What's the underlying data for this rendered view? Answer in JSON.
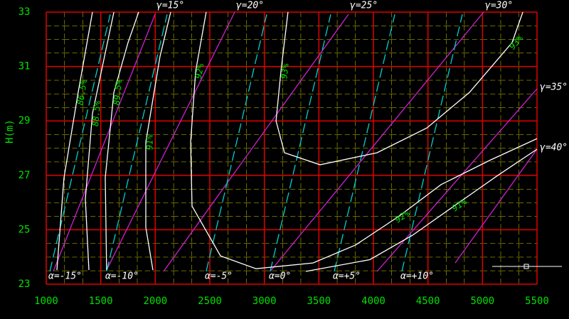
{
  "chart_data": {
    "type": "line",
    "y_label": "H(m)",
    "xlim": [
      1000,
      5500
    ],
    "ylim": [
      23,
      33
    ],
    "xticks": [
      1000,
      1500,
      2000,
      2500,
      3000,
      3500,
      4000,
      4500,
      5000,
      5500
    ],
    "yticks": [
      23,
      25,
      27,
      29,
      31,
      33
    ],
    "grid": true,
    "grid_color": "#e00000",
    "background": "#000000",
    "series": [
      {
        "name": "γ=15°",
        "group": "gamma",
        "color": "#d020d0",
        "dashed": false,
        "x": [
          1065,
          1998
        ],
        "values": [
          23.47,
          32.92
        ]
      },
      {
        "name": "γ=20°",
        "group": "gamma",
        "color": "#d020d0",
        "dashed": false,
        "x": [
          1554,
          2728
        ],
        "values": [
          23.52,
          33
        ]
      },
      {
        "name": "γ=25°",
        "group": "gamma",
        "color": "#d020d0",
        "dashed": false,
        "x": [
          2076,
          3772
        ],
        "values": [
          23.47,
          32.92
        ]
      },
      {
        "name": "γ=30°",
        "group": "gamma",
        "color": "#d020d0",
        "dashed": false,
        "x": [
          3054,
          5011
        ],
        "values": [
          23.47,
          33
        ]
      },
      {
        "name": "γ=35°",
        "group": "gamma",
        "color": "#d020d0",
        "dashed": false,
        "x": [
          4033,
          5500
        ],
        "values": [
          23.47,
          30.18
        ]
      },
      {
        "name": "γ=40°",
        "group": "gamma",
        "color": "#d020d0",
        "dashed": false,
        "x": [
          4750,
          5500
        ],
        "values": [
          23.78,
          27.96
        ]
      },
      {
        "name": "α=-15°",
        "group": "alpha",
        "color": "#00d0d0",
        "dashed": true,
        "x": [
          1033,
          1587
        ],
        "values": [
          23.47,
          32.92
        ]
      },
      {
        "name": "α=-10°",
        "group": "alpha",
        "color": "#00d0d0",
        "dashed": true,
        "x": [
          1554,
          2109
        ],
        "values": [
          23.47,
          32.92
        ]
      },
      {
        "name": "α=-5°",
        "group": "alpha",
        "color": "#00d0d0",
        "dashed": true,
        "x": [
          2467,
          3022
        ],
        "values": [
          23.47,
          32.92
        ]
      },
      {
        "name": "α=0°",
        "group": "alpha",
        "color": "#00d0d0",
        "dashed": true,
        "x": [
          3054,
          3609
        ],
        "values": [
          23.47,
          32.92
        ]
      },
      {
        "name": "α=+5°",
        "group": "alpha",
        "color": "#00d0d0",
        "dashed": true,
        "x": [
          3641,
          4196
        ],
        "values": [
          23.47,
          32.92
        ]
      },
      {
        "name": "α=+10°",
        "group": "alpha",
        "color": "#00d0d0",
        "dashed": true,
        "x": [
          4261,
          4816
        ],
        "values": [
          23.47,
          32.92
        ]
      },
      {
        "name": "86.5%",
        "group": "eff",
        "color": "#ffffff",
        "dashed": false,
        "x": [
          1098,
          1163,
          1293,
          1424
        ],
        "values": [
          23.52,
          26.92,
          30.05,
          33
        ]
      },
      {
        "name": "88.5%",
        "group": "eff",
        "color": "#ffffff",
        "dashed": false,
        "x": [
          1391,
          1359,
          1424,
          1620
        ],
        "values": [
          23.52,
          26.13,
          29.27,
          33
        ]
      },
      {
        "name": "89.5%",
        "group": "eff",
        "color": "#ffffff",
        "dashed": false,
        "x": [
          1554,
          1541,
          1620,
          1750,
          1848
        ],
        "values": [
          23.52,
          26.92,
          30.05,
          31.88,
          33
        ]
      },
      {
        "name": "91%",
        "group": "eff",
        "color": "#ffffff",
        "dashed": false,
        "x": [
          1978,
          1913,
          1913,
          2043,
          2141
        ],
        "values": [
          23.52,
          25.09,
          28.22,
          31.36,
          33
        ]
      },
      {
        "name": "92%",
        "group": "eff",
        "color": "#ffffff",
        "dashed": false,
        "x": [
          2467,
          2370,
          2324,
          2337,
          2598,
          2924,
          3446,
          3837,
          4228,
          4620,
          5076,
          5500
        ],
        "values": [
          33,
          30.83,
          28.22,
          25.87,
          24.04,
          23.57,
          23.78,
          24.44,
          25.48,
          26.66,
          27.57,
          28.35
        ]
      },
      {
        "name": "93%",
        "group": "eff",
        "color": "#ffffff",
        "dashed": false,
        "x": [
          3217,
          3152,
          3107,
          3185,
          3511,
          4033,
          4489,
          4881,
          5272,
          5370
        ],
        "values": [
          33,
          30.83,
          29.0,
          27.83,
          27.39,
          27.83,
          28.74,
          30.05,
          31.88,
          33
        ]
      },
      {
        "name": "91%",
        "group": "eff",
        "color": "#ffffff",
        "dashed": false,
        "x": [
          3380,
          3967,
          4359,
          4750,
          5141,
          5500
        ],
        "values": [
          23.47,
          23.9,
          24.8,
          25.9,
          27.0,
          27.96
        ]
      }
    ]
  }
}
